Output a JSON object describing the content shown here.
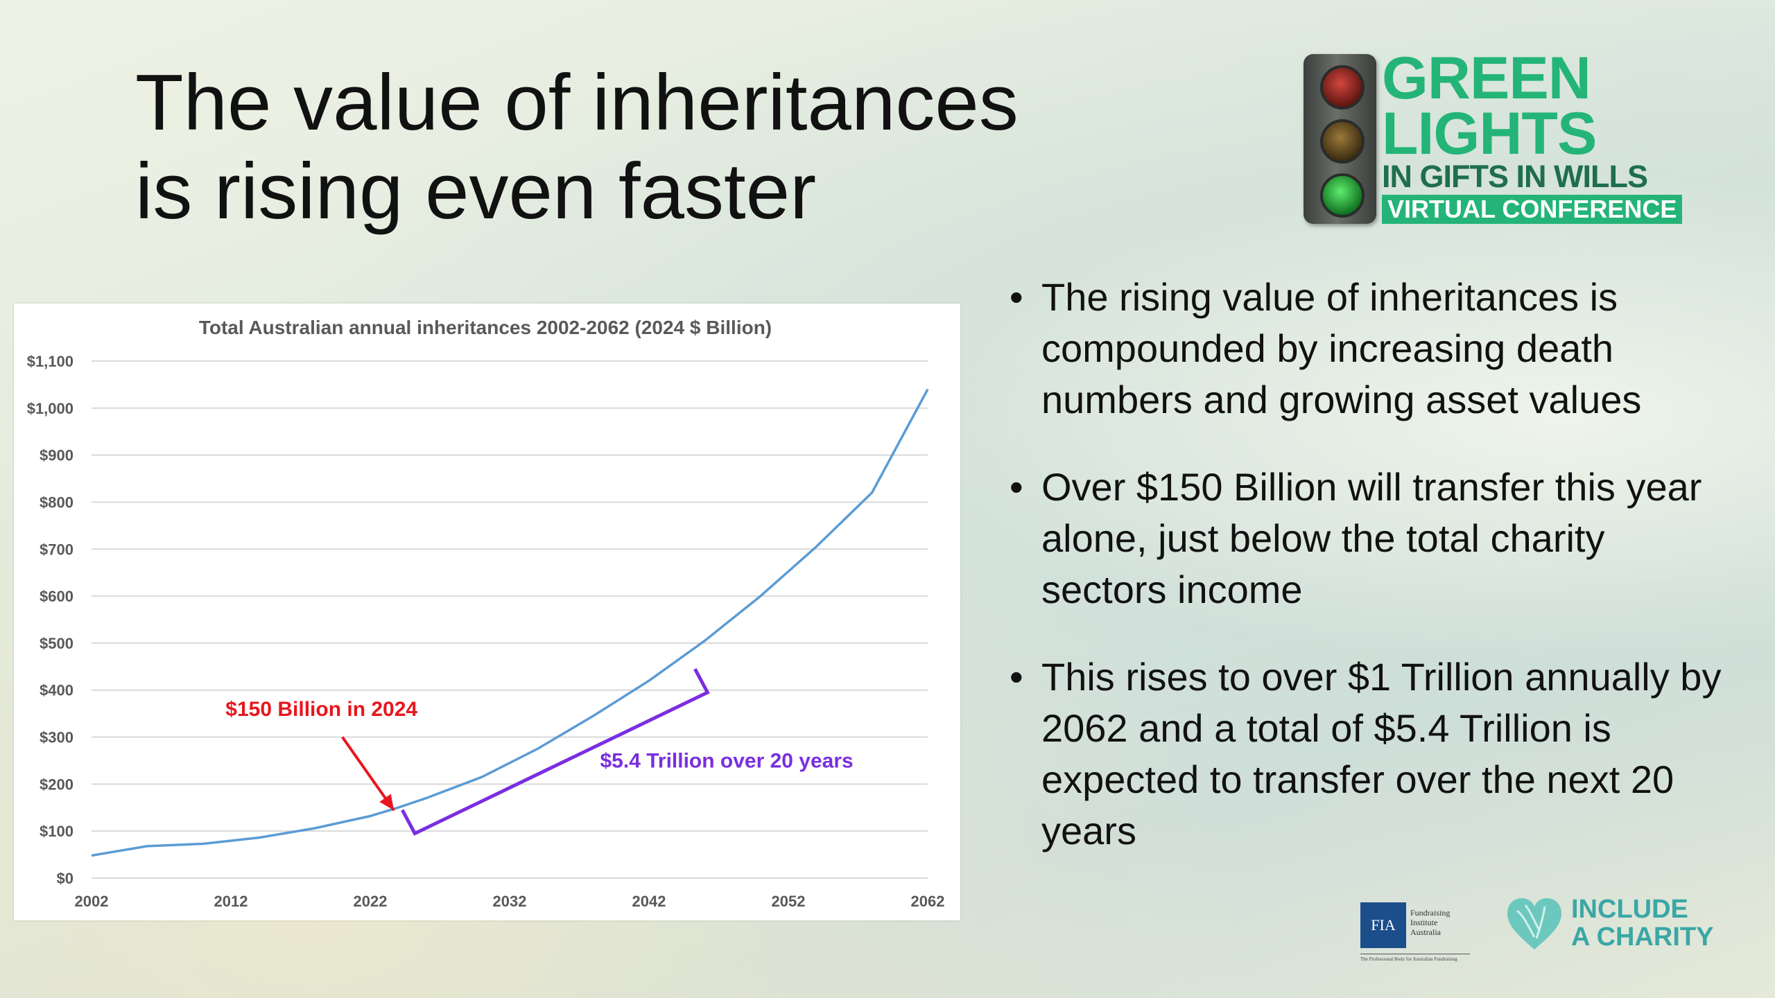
{
  "slide": {
    "title_line1": "The value of inheritances",
    "title_line2": "is rising even faster",
    "bullets": [
      "The rising value of inheritances is compounded by increasing death numbers and growing asset values",
      "Over $150 Billion will transfer this year alone, just below the total charity sectors income",
      "This rises to over $1 Trillion annually by 2062 and a total of $5.4 Trillion is expected to transfer over the next 20 years"
    ],
    "bullet_char": "•"
  },
  "logo": {
    "line1": "GREEN",
    "line2": "LIGHTS",
    "line3": "IN GIFTS IN WILLS",
    "line4": "VIRTUAL CONFERENCE"
  },
  "footer": {
    "fia_mark": "FIA",
    "fia_name": "Fundraising Institute Australia",
    "fia_tagline": "The Professional Body for Australian Fundraising",
    "charity_line1": "INCLUDE",
    "charity_line2": "A CHARITY"
  },
  "colors": {
    "line": "#5b9bd5",
    "annotation_red": "#e8161e",
    "annotation_purple": "#7a2ee0",
    "brand_green": "#24b478",
    "charity_teal": "#3aa7a5"
  },
  "chart_data": {
    "type": "line",
    "title": "Total Australian annual inheritances 2002-2062 (2024 $ Billion)",
    "xlabel": "",
    "ylabel": "",
    "xlim": [
      2002,
      2062
    ],
    "ylim": [
      0,
      1100
    ],
    "x_ticks": [
      2002,
      2012,
      2022,
      2032,
      2042,
      2052,
      2062
    ],
    "y_ticks": [
      0,
      100,
      200,
      300,
      400,
      500,
      600,
      700,
      800,
      900,
      1000,
      1100
    ],
    "y_tick_labels": [
      "$0",
      "$100",
      "$200",
      "$300",
      "$400",
      "$500",
      "$600",
      "$700",
      "$800",
      "$900",
      "$1,000",
      "$1,100"
    ],
    "grid": true,
    "legend": "none",
    "series": [
      {
        "x": [
          2002,
          2006,
          2010,
          2014,
          2018,
          2022,
          2024,
          2026,
          2030,
          2034,
          2038,
          2042,
          2046,
          2050,
          2054,
          2058,
          2062
        ],
        "y": [
          48,
          68,
          73,
          86,
          106,
          132,
          150,
          170,
          215,
          275,
          345,
          420,
          505,
          600,
          705,
          820,
          1040
        ]
      }
    ],
    "annotations": [
      {
        "text": "$150 Billion in 2024",
        "color": "red",
        "points_to": {
          "x": 2024,
          "y": 150
        },
        "label_at": {
          "x": 2019,
          "y": 345
        }
      },
      {
        "text": "$5.4 Trillion over 20 years",
        "color": "purple",
        "range": [
          2025,
          2046
        ],
        "label_at": {
          "x": 2037,
          "y": 235
        }
      }
    ]
  }
}
